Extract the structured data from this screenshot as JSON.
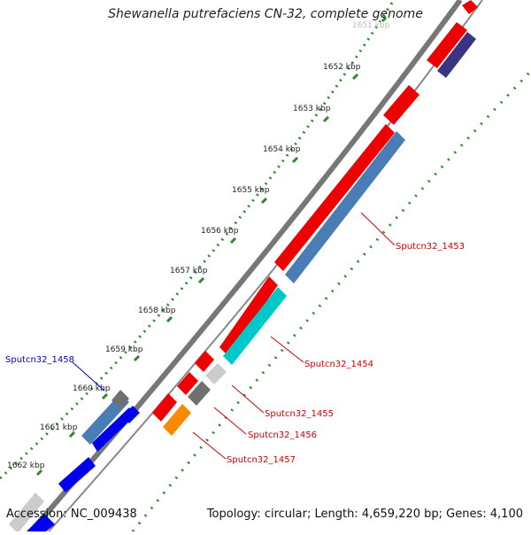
{
  "title": "Shewanella putrefaciens CN-32, complete genome",
  "footer": {
    "accession_label": "Accession:",
    "accession": "NC_009438",
    "topology_label": "Topology:",
    "topology": "circular",
    "length_label": "Length:",
    "length": "4,659,220 bp",
    "genes_label": "Genes:",
    "genes": "4,100"
  },
  "ticks": [
    "1651 kbp",
    "1652 kbp",
    "1653 kbp",
    "1654 kbp",
    "1655 kbp",
    "1656 kbp",
    "1657 kbp",
    "1658 kbp",
    "1659 kbp",
    "1660 kbp",
    "1661 kbp",
    "1662 kbp"
  ],
  "gene_labels": [
    {
      "name": "Sputcn32_1453",
      "color": "#cc0000"
    },
    {
      "name": "Sputcn32_1454",
      "color": "#cc0000"
    },
    {
      "name": "Sputcn32_1455",
      "color": "#cc0000"
    },
    {
      "name": "Sputcn32_1456",
      "color": "#cc0000"
    },
    {
      "name": "Sputcn32_1457",
      "color": "#cc0000"
    },
    {
      "name": "Sputcn32_1458",
      "color": "#0000cc"
    }
  ],
  "colors": {
    "red_feature": "#ee0000",
    "steel_blue": "#4a7db5",
    "cyan": "#00c8c8",
    "gray_feature": "#707070",
    "light_gray": "#cccccc",
    "orange": "#ff8800",
    "blue": "#0000ee",
    "dark_slate": "#3a3580",
    "backbone": "#777777",
    "tick_green": "#2a8a2a"
  }
}
